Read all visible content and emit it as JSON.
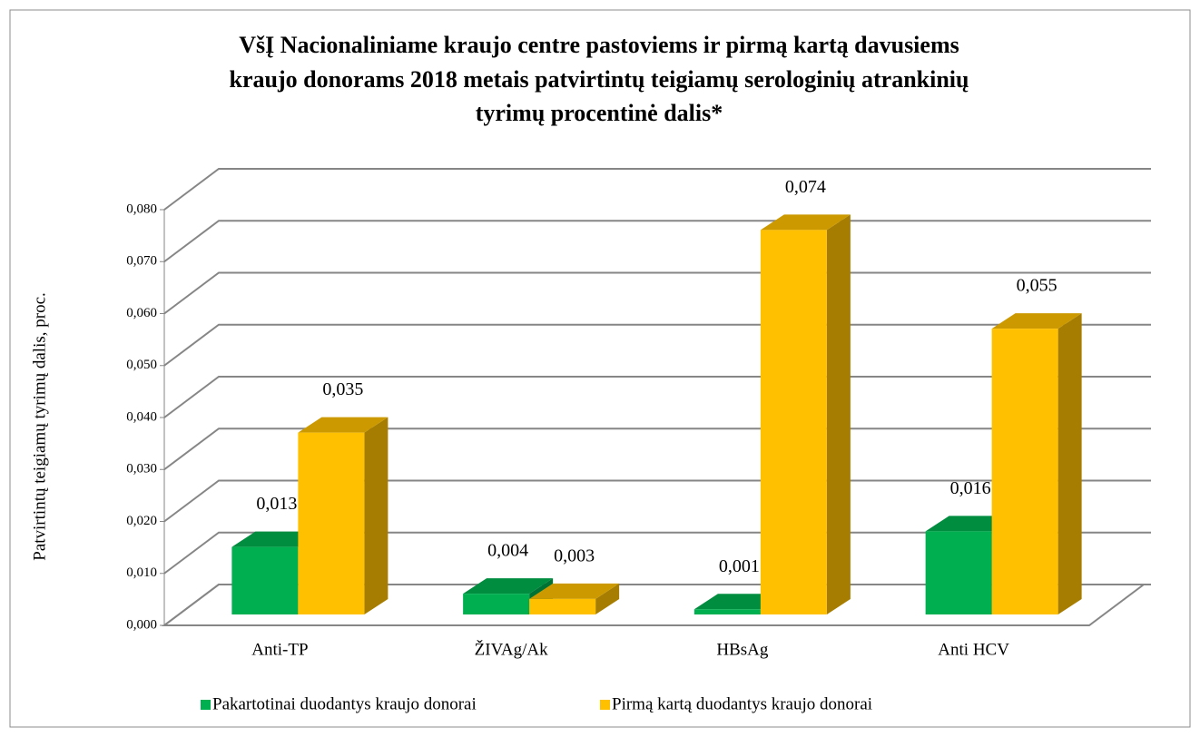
{
  "chart_data": {
    "type": "bar3d",
    "title": [
      "VšĮ Nacionaliniame kraujo centre pastoviems ir pirmą kartą davusiems",
      "kraujo  donorams 2018 metais patvirtintų teigiamų serologinių atrankinių",
      "tyrimų procentinė dalis*"
    ],
    "y_label": "Patvirtintų teigiamų tyrimų dalis, proc.",
    "categories": [
      "Anti-TP",
      "ŽIVAg/Ak",
      "HBsAg",
      "Anti HCV"
    ],
    "series": [
      {
        "name": "Pakartotinai duodantys kraujo donorai",
        "color": "#00b050",
        "values": [
          0.013,
          0.004,
          0.001,
          0.016
        ],
        "value_labels": [
          "0,013",
          "0,004",
          "0,001",
          "0,016"
        ]
      },
      {
        "name": "Pirmą kartą duodantys kraujo donorai",
        "color": "#ffc000",
        "values": [
          0.035,
          0.003,
          0.074,
          0.055
        ],
        "value_labels": [
          "0,035",
          "0,003",
          "0,074",
          "0,055"
        ]
      }
    ],
    "ylim": [
      0,
      0.08
    ],
    "yticks": [
      {
        "value": 0,
        "label": "0,000"
      },
      {
        "value": 0.01,
        "label": "0,010"
      },
      {
        "value": 0.02,
        "label": "0,020"
      },
      {
        "value": 0.03,
        "label": "0,030"
      },
      {
        "value": 0.04,
        "label": "0,040"
      },
      {
        "value": 0.05,
        "label": "0,050"
      },
      {
        "value": 0.06,
        "label": "0,060"
      },
      {
        "value": 0.07,
        "label": "0,070"
      },
      {
        "value": 0.08,
        "label": "0,080"
      }
    ],
    "grid": true,
    "legend": "bottom"
  }
}
